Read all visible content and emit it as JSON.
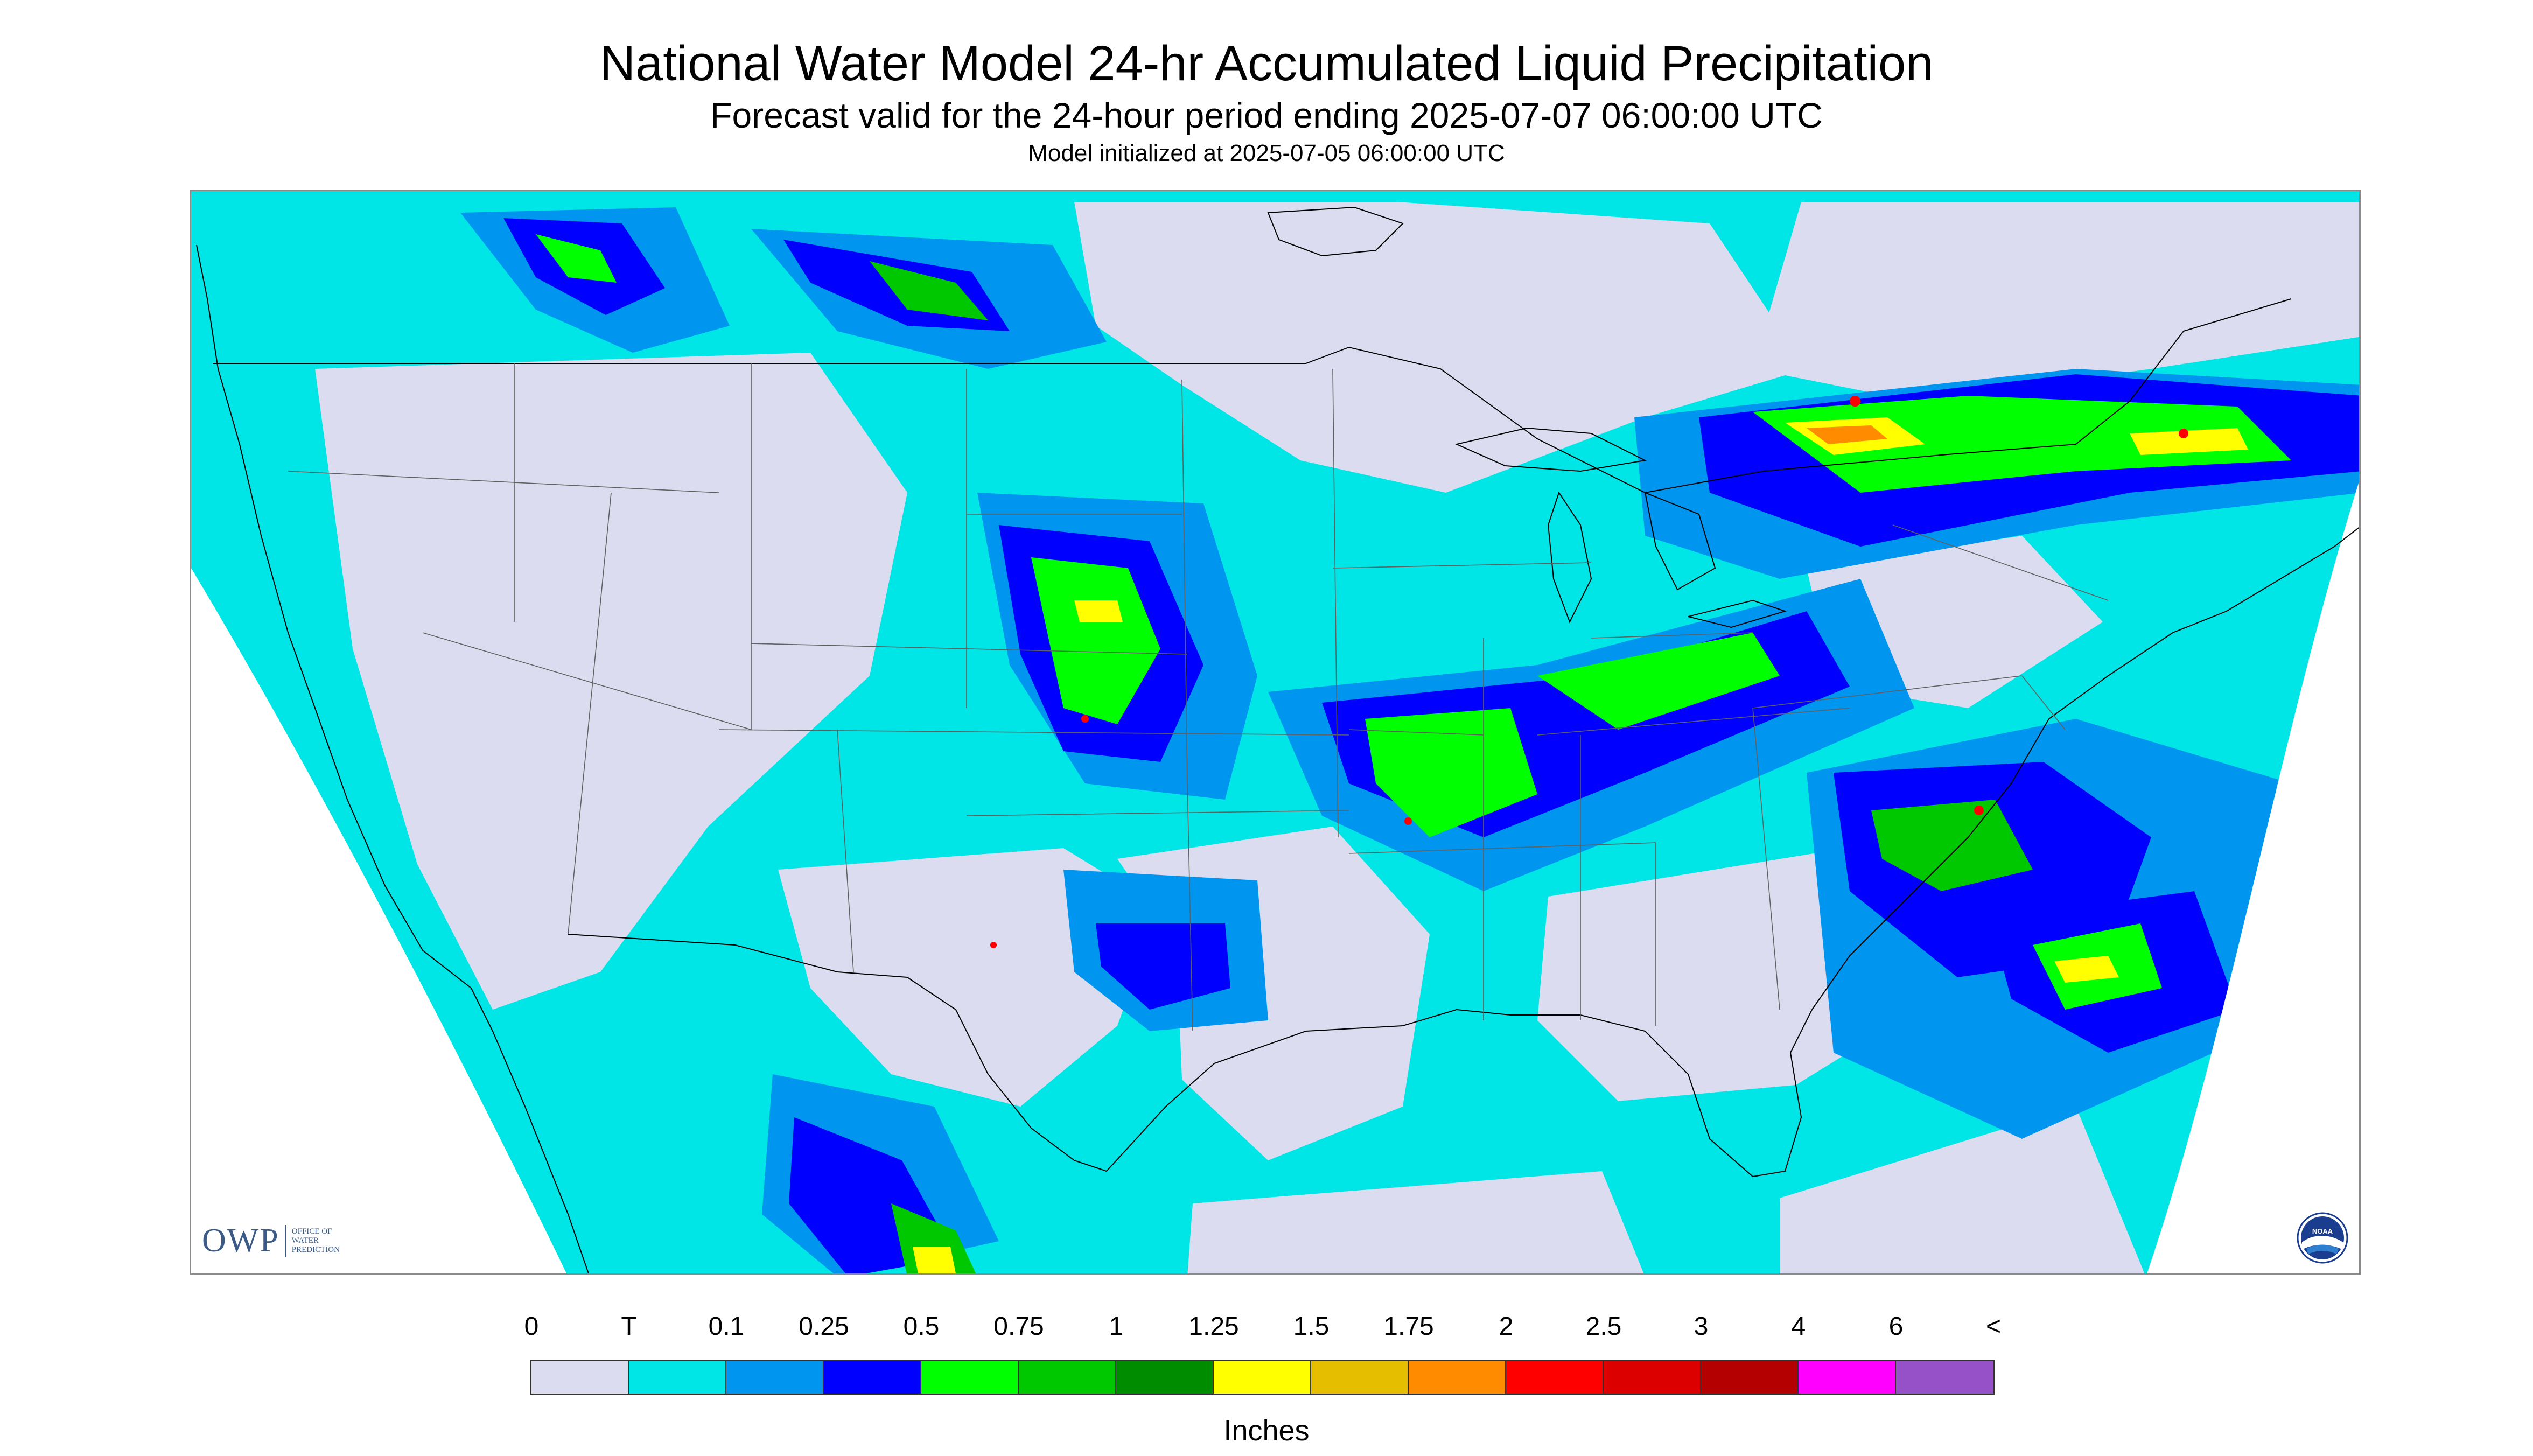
{
  "title": "National Water Model 24-hr Accumulated Liquid Precipitation",
  "subtitle": "Forecast valid for the 24-hour period ending 2025-07-07 06:00:00 UTC",
  "init_text": "Model initialized at 2025-07-05 06:00:00 UTC",
  "owp_logo": {
    "mark": "OWP",
    "lines": [
      "OFFICE OF",
      "WATER",
      "PREDICTION"
    ]
  },
  "noaa_logo": {
    "text": "NOAA",
    "icon": "noaa-seal-icon"
  },
  "legend": {
    "unit": "Inches",
    "labels": [
      "0",
      "T",
      "0.1",
      "0.25",
      "0.5",
      "0.75",
      "1",
      "1.25",
      "1.5",
      "1.75",
      "2",
      "2.5",
      "3",
      "4",
      "6",
      "<"
    ],
    "colors": [
      "#dcdcf0",
      "#00e6e6",
      "#0096f0",
      "#0000ff",
      "#00ff00",
      "#00c800",
      "#008c00",
      "#ffff00",
      "#e6be00",
      "#ff8c00",
      "#ff0000",
      "#dc0000",
      "#b40000",
      "#ff00ff",
      "#9650c8"
    ]
  },
  "map": {
    "background_color": "#dcdcf0",
    "border_color": "#000000"
  }
}
